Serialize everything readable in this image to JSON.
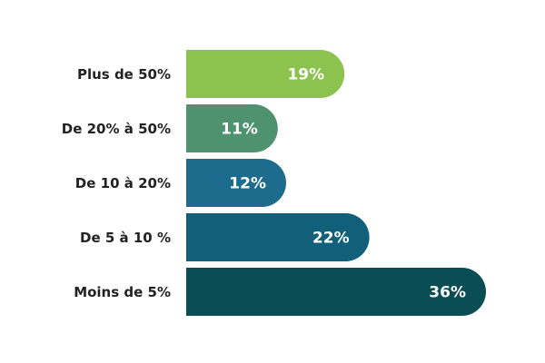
{
  "chart_data": {
    "type": "bar",
    "orientation": "horizontal",
    "categories": [
      "Plus de 50%",
      "De 20% à 50%",
      "De 10 à 20%",
      "De 5 à 10 %",
      "Moins de 5%"
    ],
    "values": [
      19,
      11,
      12,
      22,
      36
    ],
    "value_labels": [
      "19%",
      "11%",
      "12%",
      "22%",
      "36%"
    ],
    "colors": [
      "#8cc34f",
      "#4f9270",
      "#1d6b8d",
      "#115f78",
      "#0b4d55"
    ]
  }
}
